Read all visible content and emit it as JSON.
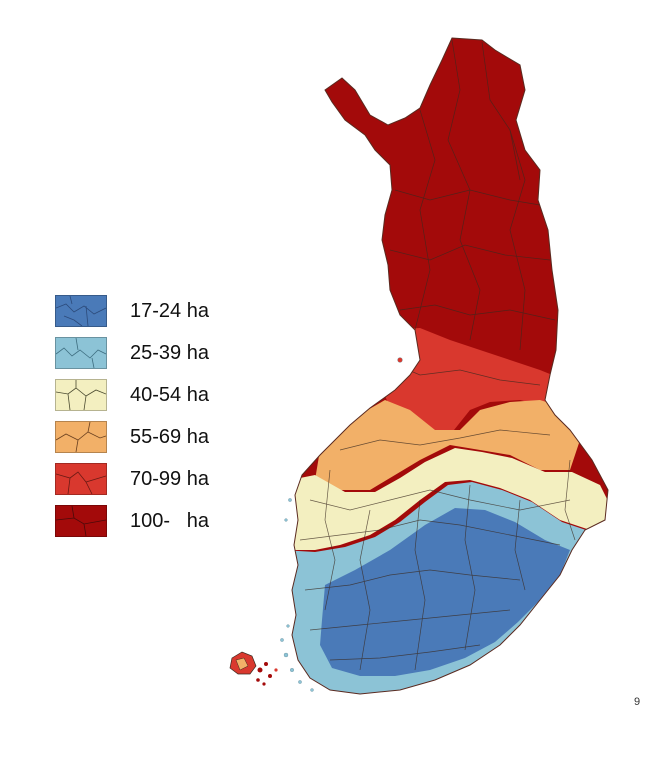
{
  "legend": {
    "items": [
      {
        "label": "17-24 ha",
        "color": "#4a7ab8"
      },
      {
        "label": "25-39 ha",
        "color": "#8cc3d6"
      },
      {
        "label": "40-54 ha",
        "color": "#f3efc0"
      },
      {
        "label": "55-69 ha",
        "color": "#f2b068"
      },
      {
        "label": "70-99 ha",
        "color": "#d9382e"
      },
      {
        "label": "100-   ha",
        "color": "#a30a0a"
      }
    ]
  },
  "page_number": "9",
  "colors": {
    "region_border": "#3a2a20",
    "background": "#ffffff"
  }
}
